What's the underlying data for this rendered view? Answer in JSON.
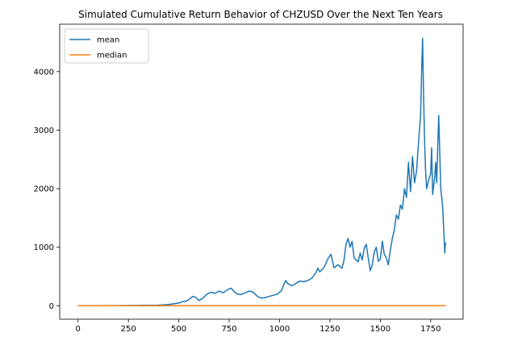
{
  "chart_data": {
    "type": "line",
    "title": "Simulated Cumulative Return Behavior of CHZUSD Over the Next Ten Years",
    "xlabel": "",
    "ylabel": "",
    "xlim": [
      -91,
      1911
    ],
    "ylim": [
      -230,
      4810
    ],
    "xticks": [
      0,
      250,
      500,
      750,
      1000,
      1250,
      1500,
      1750
    ],
    "yticks": [
      0,
      1000,
      2000,
      3000,
      4000
    ],
    "grid": false,
    "legend": "upper-left",
    "series": [
      {
        "name": "mean",
        "color": "#1f77b4",
        "points": [
          [
            0,
            1
          ],
          [
            100,
            2
          ],
          [
            200,
            3
          ],
          [
            300,
            5
          ],
          [
            400,
            10
          ],
          [
            450,
            20
          ],
          [
            500,
            45
          ],
          [
            520,
            70
          ],
          [
            540,
            80
          ],
          [
            555,
            120
          ],
          [
            570,
            160
          ],
          [
            585,
            140
          ],
          [
            600,
            90
          ],
          [
            620,
            130
          ],
          [
            640,
            200
          ],
          [
            660,
            230
          ],
          [
            680,
            210
          ],
          [
            700,
            250
          ],
          [
            720,
            220
          ],
          [
            740,
            270
          ],
          [
            760,
            300
          ],
          [
            775,
            240
          ],
          [
            790,
            200
          ],
          [
            810,
            190
          ],
          [
            830,
            220
          ],
          [
            850,
            250
          ],
          [
            870,
            230
          ],
          [
            890,
            160
          ],
          [
            910,
            130
          ],
          [
            930,
            140
          ],
          [
            950,
            160
          ],
          [
            970,
            180
          ],
          [
            990,
            200
          ],
          [
            1010,
            260
          ],
          [
            1020,
            350
          ],
          [
            1030,
            430
          ],
          [
            1040,
            380
          ],
          [
            1060,
            340
          ],
          [
            1080,
            380
          ],
          [
            1100,
            420
          ],
          [
            1120,
            410
          ],
          [
            1140,
            430
          ],
          [
            1160,
            470
          ],
          [
            1180,
            560
          ],
          [
            1190,
            640
          ],
          [
            1200,
            580
          ],
          [
            1220,
            650
          ],
          [
            1240,
            800
          ],
          [
            1255,
            880
          ],
          [
            1270,
            650
          ],
          [
            1290,
            700
          ],
          [
            1310,
            640
          ],
          [
            1320,
            780
          ],
          [
            1330,
            1050
          ],
          [
            1340,
            1150
          ],
          [
            1350,
            1000
          ],
          [
            1360,
            1100
          ],
          [
            1370,
            820
          ],
          [
            1390,
            750
          ],
          [
            1400,
            900
          ],
          [
            1410,
            780
          ],
          [
            1420,
            980
          ],
          [
            1430,
            1050
          ],
          [
            1440,
            820
          ],
          [
            1450,
            600
          ],
          [
            1460,
            700
          ],
          [
            1470,
            920
          ],
          [
            1480,
            1000
          ],
          [
            1490,
            760
          ],
          [
            1500,
            800
          ],
          [
            1510,
            1100
          ],
          [
            1520,
            880
          ],
          [
            1530,
            820
          ],
          [
            1540,
            700
          ],
          [
            1550,
            950
          ],
          [
            1560,
            1150
          ],
          [
            1570,
            1300
          ],
          [
            1580,
            1550
          ],
          [
            1590,
            1480
          ],
          [
            1600,
            1720
          ],
          [
            1610,
            1650
          ],
          [
            1620,
            2000
          ],
          [
            1630,
            1850
          ],
          [
            1640,
            2450
          ],
          [
            1650,
            1950
          ],
          [
            1660,
            2550
          ],
          [
            1670,
            2100
          ],
          [
            1680,
            2300
          ],
          [
            1690,
            2800
          ],
          [
            1700,
            3250
          ],
          [
            1705,
            4000
          ],
          [
            1710,
            4570
          ],
          [
            1715,
            3600
          ],
          [
            1720,
            2800
          ],
          [
            1725,
            2300
          ],
          [
            1730,
            2000
          ],
          [
            1740,
            2150
          ],
          [
            1750,
            2250
          ],
          [
            1755,
            2700
          ],
          [
            1760,
            1900
          ],
          [
            1770,
            2200
          ],
          [
            1775,
            2450
          ],
          [
            1780,
            2100
          ],
          [
            1785,
            2700
          ],
          [
            1790,
            3250
          ],
          [
            1795,
            2650
          ],
          [
            1800,
            2000
          ],
          [
            1805,
            1850
          ],
          [
            1810,
            1650
          ],
          [
            1815,
            1300
          ],
          [
            1820,
            900
          ],
          [
            1823,
            1050
          ],
          [
            1826,
            1080
          ]
        ]
      },
      {
        "name": "median",
        "color": "#ff7f0e",
        "points": [
          [
            0,
            0
          ],
          [
            500,
            1
          ],
          [
            1000,
            1
          ],
          [
            1500,
            1
          ],
          [
            1826,
            1
          ]
        ]
      }
    ]
  }
}
